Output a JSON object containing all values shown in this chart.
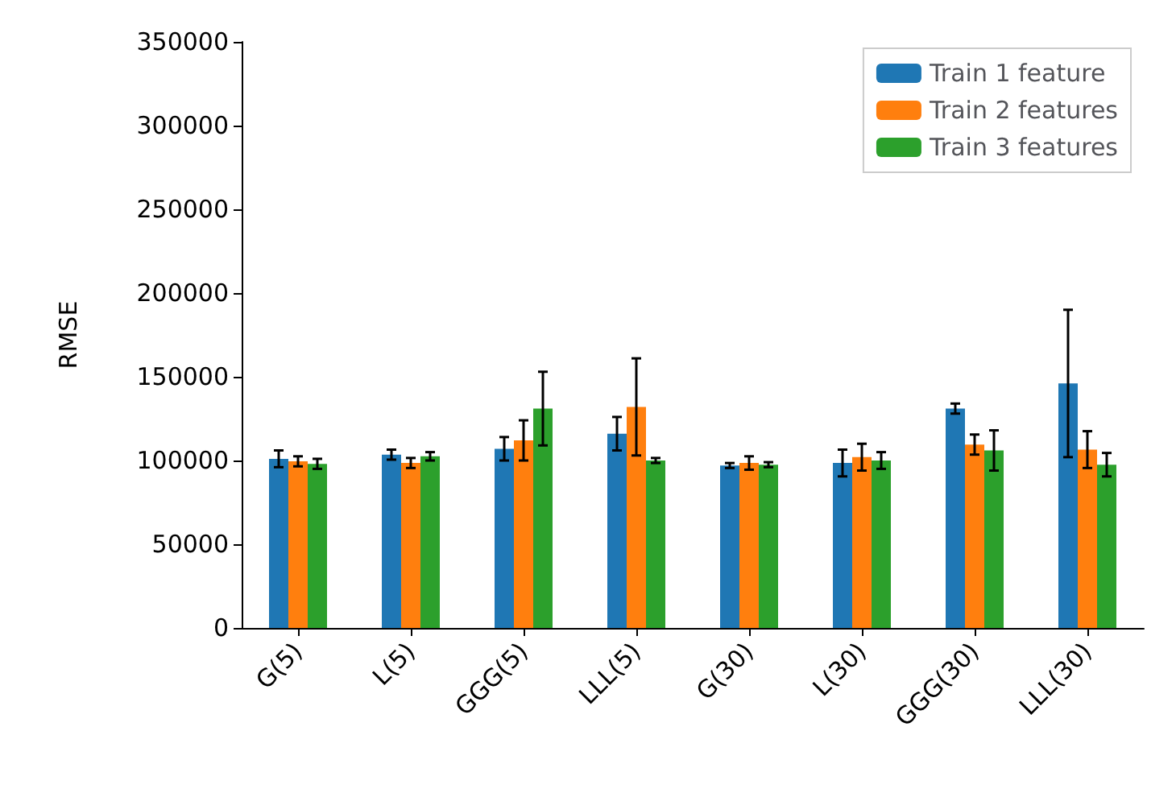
{
  "chart_data": {
    "type": "bar",
    "ylabel": "RMSE",
    "categories": [
      "G(5)",
      "L(5)",
      "GGG(5)",
      "LLL(5)",
      "G(30)",
      "L(30)",
      "GGG(30)",
      "LLL(30)"
    ],
    "series": [
      {
        "name": "Train 1 feature",
        "color": "#1f77b4",
        "values": [
          101000,
          103500,
          107000,
          116000,
          97000,
          98500,
          131000,
          146000
        ],
        "errors": [
          5000,
          3000,
          7000,
          10000,
          1500,
          8000,
          3000,
          44000
        ]
      },
      {
        "name": "Train 2 features",
        "color": "#ff7f0e",
        "values": [
          99500,
          98500,
          112000,
          132000,
          98500,
          102000,
          109500,
          106500
        ],
        "errors": [
          3000,
          3000,
          12000,
          29000,
          4000,
          8000,
          6000,
          11000
        ]
      },
      {
        "name": "Train 3 features",
        "color": "#2ca02c",
        "values": [
          98000,
          102500,
          131000,
          100000,
          97500,
          100000,
          106000,
          97500
        ],
        "errors": [
          3000,
          2500,
          22000,
          1500,
          1500,
          5000,
          12000,
          7000
        ]
      }
    ],
    "ylim": [
      0,
      350000
    ],
    "yticks": [
      0,
      50000,
      100000,
      150000,
      200000,
      250000,
      300000,
      350000
    ],
    "grid": false,
    "legend": "top right"
  }
}
